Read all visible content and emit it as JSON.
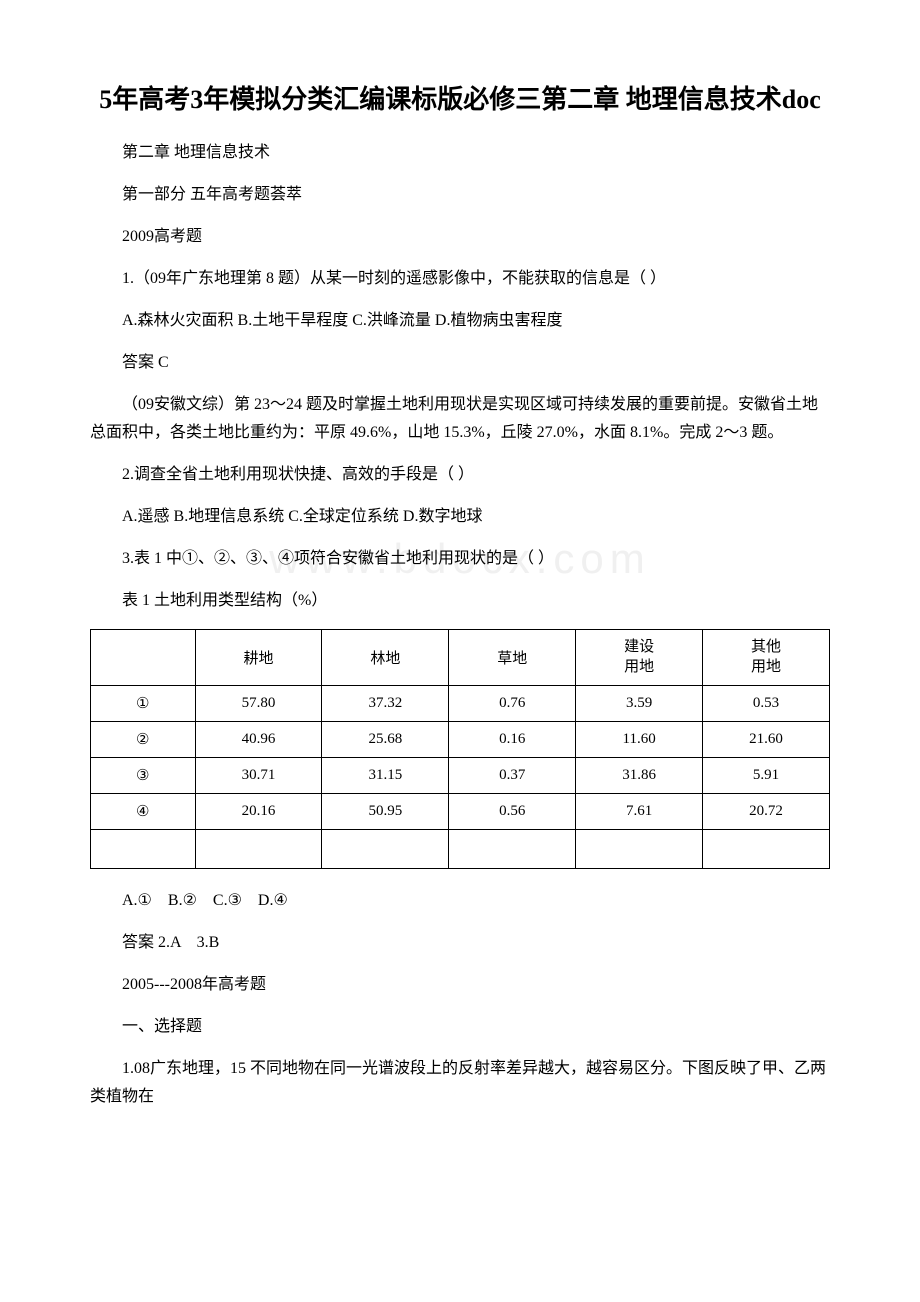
{
  "title": "5年高考3年模拟分类汇编课标版必修三第二章 地理信息技术doc",
  "p1": "第二章 地理信息技术",
  "p2": "第一部分 五年高考题荟萃",
  "p3": "2009高考题",
  "p4": "1.（09年广东地理第 8 题）从某一时刻的遥感影像中，不能获取的信息是（ ）",
  "p5": "A.森林火灾面积  B.土地干旱程度  C.洪峰流量   D.植物病虫害程度",
  "p6": "答案 C",
  "p7": "（09安徽文综）第 23～24 题及时掌握土地利用现状是实现区域可持续发展的重要前提。安徽省土地总面积中，各类土地比重约为：平原 49.6%，山地 15.3%，丘陵 27.0%，水面 8.1%。完成 2～3 题。",
  "p8": "2.调查全省土地利用现状快捷、高效的手段是（ ）",
  "p9": "A.遥感  B.地理信息系统 C.全球定位系统   D.数字地球",
  "p10": "3.表 1 中①、②、③、④项符合安徽省土地利用现状的是（ ）",
  "p11": "表 1 土地利用类型结构（%）",
  "table": {
    "headers": [
      "",
      "耕地",
      "林地",
      "草地",
      "建设\n用地",
      "其他\n用地"
    ],
    "rows": [
      [
        "①",
        "57.80",
        "37.32",
        "0.76",
        "3.59",
        "0.53"
      ],
      [
        "②",
        "40.96",
        "25.68",
        "0.16",
        "11.60",
        "21.60"
      ],
      [
        "③",
        "30.71",
        "31.15",
        "0.37",
        "31.86",
        "5.91"
      ],
      [
        "④",
        "20.16",
        "50.95",
        "0.56",
        "7.61",
        "20.72"
      ]
    ]
  },
  "p12": "A.①　B.②　C.③　D.④",
  "p13": "答案 2.A　3.B",
  "p14": "2005---2008年高考题",
  "p15": "一、选择题",
  "p16": "1.08广东地理，15 不同地物在同一光谱波段上的反射率差异越大，越容易区分。下图反映了甲、乙两类植物在",
  "watermark": "www.bdocx.com"
}
